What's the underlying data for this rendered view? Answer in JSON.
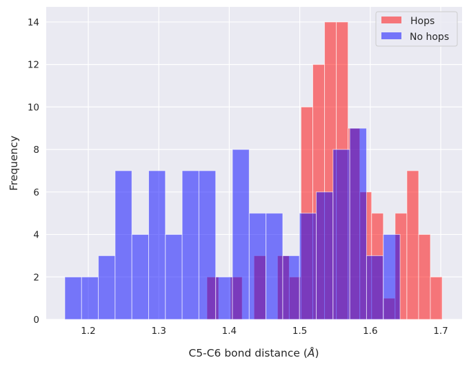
{
  "chart_data": {
    "type": "histogram",
    "title": "",
    "xlabel": "C5-C6 bond distance (",
    "xlabel_unit": "Å",
    "xlabel_close": ")",
    "ylabel": "Frequency",
    "xlim": [
      1.1403,
      1.7303
    ],
    "ylim": [
      0,
      14.71
    ],
    "xticks": [
      1.2,
      1.3,
      1.4,
      1.5,
      1.6,
      1.7
    ],
    "xtick_labels": [
      "1.2",
      "1.3",
      "1.4",
      "1.5",
      "1.6",
      "1.7"
    ],
    "yticks": [
      0,
      2,
      4,
      6,
      8,
      10,
      12,
      14
    ],
    "ytick_labels": [
      "0",
      "2",
      "4",
      "6",
      "8",
      "10",
      "12",
      "14"
    ],
    "grid": true,
    "background": "#EAEAF2",
    "legend_position": "top-right",
    "series": [
      {
        "name": "Hops",
        "color": "#FF0000",
        "alpha": 0.5,
        "range": [
          1.3683,
          1.702
        ],
        "counts": [
          2,
          0,
          2,
          0,
          3,
          0,
          3,
          2,
          10,
          12,
          14,
          14,
          9,
          6,
          5,
          1,
          5,
          7,
          4,
          2
        ]
      },
      {
        "name": "No hops",
        "color": "#0000FF",
        "alpha": 0.5,
        "range": [
          1.1667,
          1.6423
        ],
        "counts": [
          2,
          2,
          3,
          7,
          4,
          7,
          4,
          7,
          7,
          2,
          8,
          5,
          5,
          3,
          5,
          6,
          8,
          9,
          3,
          4
        ]
      }
    ]
  }
}
